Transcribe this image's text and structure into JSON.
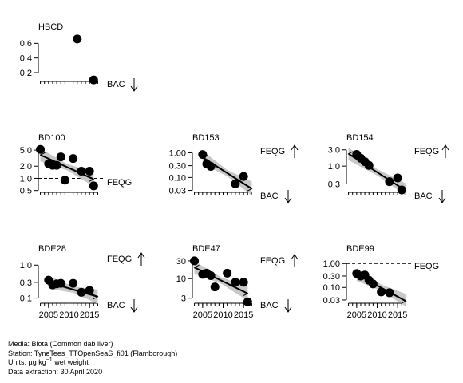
{
  "chart_data": [
    {
      "type": "scatter",
      "title": "HBCD",
      "yscale": "linear",
      "ylim": [
        0.08,
        0.68
      ],
      "yticks": [
        "0.2",
        "0.4",
        "0.6"
      ],
      "xlim": [
        2002.5,
        2017.5
      ],
      "xticks_shown": false,
      "points": [
        {
          "x": 2012,
          "y": 0.66
        },
        {
          "x": 2016,
          "y": 0.1
        }
      ],
      "trend": null,
      "ref_lines": [
        {
          "label": "BAC",
          "value": 0.085,
          "arrow": "down",
          "drawn": false
        }
      ]
    },
    {
      "type": "scatter",
      "title": "BD100",
      "yscale": "log",
      "ylim": [
        0.45,
        5.5
      ],
      "yticks": [
        "0.5",
        "1.0",
        "2.0",
        "5.0"
      ],
      "xlim": [
        2002.5,
        2017.5
      ],
      "xticks_shown": false,
      "points": [
        {
          "x": 2003,
          "y": 5.2
        },
        {
          "x": 2005,
          "y": 2.3
        },
        {
          "x": 2006,
          "y": 2.1
        },
        {
          "x": 2007,
          "y": 2.1
        },
        {
          "x": 2008,
          "y": 3.4
        },
        {
          "x": 2009,
          "y": 0.9
        },
        {
          "x": 2011,
          "y": 3.1
        },
        {
          "x": 2013,
          "y": 1.5
        },
        {
          "x": 2015,
          "y": 1.5
        },
        {
          "x": 2016,
          "y": 0.65
        }
      ],
      "trend": {
        "x0": 2003,
        "y0": 3.8,
        "x1": 2016,
        "y1": 0.95
      },
      "ref_lines": [
        {
          "label": "FEQG",
          "value": 1.0,
          "arrow": "",
          "drawn": true
        }
      ]
    },
    {
      "type": "scatter",
      "title": "BD153",
      "yscale": "log",
      "ylim": [
        0.025,
        1.5
      ],
      "yticks": [
        "0.03",
        "0.10",
        "0.30",
        "1.00"
      ],
      "xlim": [
        2002.5,
        2017.5
      ],
      "xticks_shown": false,
      "points": [
        {
          "x": 2005,
          "y": 0.85
        },
        {
          "x": 2006,
          "y": 0.35
        },
        {
          "x": 2007,
          "y": 0.28
        },
        {
          "x": 2013,
          "y": 0.055
        },
        {
          "x": 2015,
          "y": 0.11
        }
      ],
      "trend": {
        "x0": 2005,
        "y0": 0.65,
        "x1": 2017,
        "y1": 0.035
      },
      "ref_lines": [
        {
          "label": "FEQG",
          "value": null,
          "arrow": "up",
          "drawn": false
        },
        {
          "label": "BAC",
          "value": null,
          "arrow": "down",
          "drawn": false
        }
      ]
    },
    {
      "type": "scatter",
      "title": "BD154",
      "yscale": "log",
      "ylim": [
        0.17,
        3.3
      ],
      "yticks": [
        "0.3",
        "1.0",
        "3.0"
      ],
      "xlim": [
        2002.5,
        2017.5
      ],
      "xticks_shown": false,
      "points": [
        {
          "x": 2005,
          "y": 2.2
        },
        {
          "x": 2006,
          "y": 1.7
        },
        {
          "x": 2007,
          "y": 1.35
        },
        {
          "x": 2008,
          "y": 1.05
        },
        {
          "x": 2013,
          "y": 0.35
        },
        {
          "x": 2015,
          "y": 0.45
        },
        {
          "x": 2016,
          "y": 0.2
        }
      ],
      "trend": {
        "x0": 2003,
        "y0": 2.3,
        "x1": 2017,
        "y1": 0.19
      },
      "ref_lines": [
        {
          "label": "FEQG",
          "value": null,
          "arrow": "up",
          "drawn": false
        },
        {
          "label": "BAC",
          "value": null,
          "arrow": "down",
          "drawn": false
        }
      ]
    },
    {
      "type": "scatter",
      "title": "BDE28",
      "yscale": "log",
      "ylim": [
        0.07,
        1.5
      ],
      "yticks": [
        "0.1",
        "0.3",
        "1.0"
      ],
      "xlim": [
        2002.5,
        2017.5
      ],
      "xticks": [
        2005,
        2010,
        2015
      ],
      "xticks_shown": true,
      "points": [
        {
          "x": 2005,
          "y": 0.35
        },
        {
          "x": 2006,
          "y": 0.25
        },
        {
          "x": 2007,
          "y": 0.27
        },
        {
          "x": 2008,
          "y": 0.28
        },
        {
          "x": 2011,
          "y": 0.28
        },
        {
          "x": 2013,
          "y": 0.15
        },
        {
          "x": 2015,
          "y": 0.17
        }
      ],
      "trend": {
        "x0": 2005,
        "y0": 0.3,
        "x1": 2017,
        "y1": 0.11
      },
      "ref_lines": [
        {
          "label": "FEQG",
          "value": null,
          "arrow": "up",
          "drawn": false
        },
        {
          "label": "BAC",
          "value": null,
          "arrow": "down",
          "drawn": false
        }
      ]
    },
    {
      "type": "scatter",
      "title": "BDE47",
      "yscale": "log",
      "ylim": [
        2.2,
        33
      ],
      "yticks": [
        "3",
        "10",
        "30"
      ],
      "xlim": [
        2002.5,
        2017.5
      ],
      "xticks": [
        2005,
        2010,
        2015
      ],
      "xticks_shown": true,
      "points": [
        {
          "x": 2003,
          "y": 30
        },
        {
          "x": 2005,
          "y": 13
        },
        {
          "x": 2006,
          "y": 14
        },
        {
          "x": 2007,
          "y": 12
        },
        {
          "x": 2008,
          "y": 6
        },
        {
          "x": 2011,
          "y": 14
        },
        {
          "x": 2013,
          "y": 8
        },
        {
          "x": 2015,
          "y": 8
        },
        {
          "x": 2016,
          "y": 2.4
        }
      ],
      "trend": {
        "x0": 2003,
        "y0": 20,
        "x1": 2016,
        "y1": 4
      },
      "ref_lines": [
        {
          "label": "FEQG",
          "value": null,
          "arrow": "up",
          "drawn": false
        },
        {
          "label": "BAC",
          "value": null,
          "arrow": "down",
          "drawn": false
        }
      ]
    },
    {
      "type": "scatter",
      "title": "BDE99",
      "yscale": "log",
      "ylim": [
        0.022,
        1.5
      ],
      "yticks": [
        "0.03",
        "0.10",
        "0.30",
        "1.00"
      ],
      "xlim": [
        2002.5,
        2017.5
      ],
      "xticks": [
        2005,
        2010,
        2015
      ],
      "xticks_shown": true,
      "points": [
        {
          "x": 2005,
          "y": 0.38
        },
        {
          "x": 2006,
          "y": 0.3
        },
        {
          "x": 2007,
          "y": 0.33
        },
        {
          "x": 2008,
          "y": 0.2
        },
        {
          "x": 2009,
          "y": 0.14
        },
        {
          "x": 2011,
          "y": 0.065
        },
        {
          "x": 2013,
          "y": 0.06
        }
      ],
      "trend": {
        "x0": 2005,
        "y0": 0.35,
        "x1": 2017,
        "y1": 0.027
      },
      "ref_lines": [
        {
          "label": "FEQG",
          "value": 1.0,
          "arrow": "",
          "drawn": true
        }
      ]
    }
  ],
  "footer": {
    "media": "Media: Biota (Common dab liver)",
    "station": "Station: TyneTees_TTOpenSeaS_fi01 (Flamborough)",
    "units_prefix": "Units: µg kg",
    "units_sup": "−1",
    "units_suffix": " wet weight",
    "extraction": "Data extraction: 30 April 2020"
  }
}
